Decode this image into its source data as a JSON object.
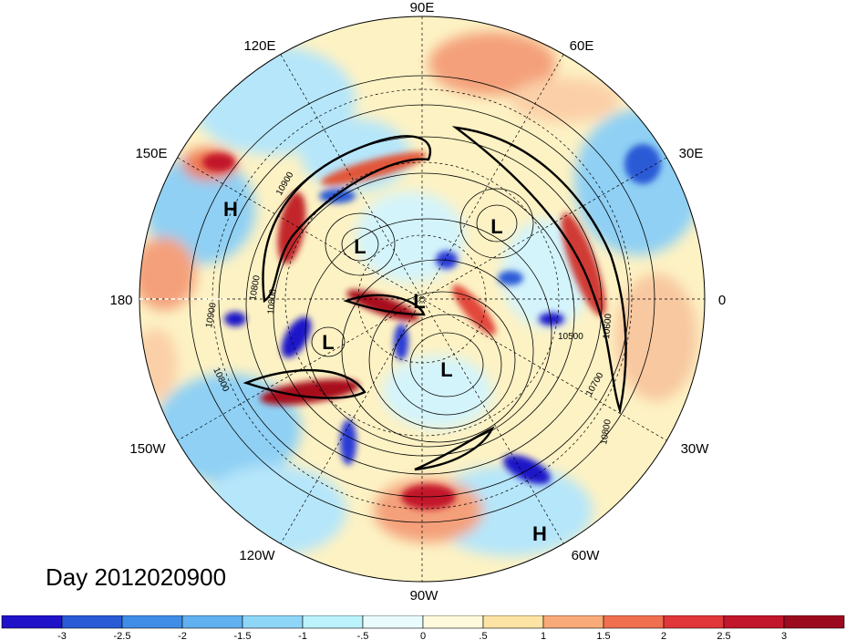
{
  "map": {
    "projection": "north polar stereographic",
    "longitude_labels": [
      "90E",
      "60E",
      "30E",
      "0",
      "30W",
      "60W",
      "90W",
      "120W",
      "150W",
      "180",
      "150E",
      "120E"
    ],
    "pressure_centers": [
      {
        "type": "H",
        "label": "H"
      },
      {
        "type": "L",
        "label": "L"
      },
      {
        "type": "L",
        "label": "L"
      },
      {
        "type": "L",
        "label": "L"
      },
      {
        "type": "L",
        "label": "L"
      },
      {
        "type": "L",
        "label": "L"
      },
      {
        "type": "H",
        "label": "H"
      }
    ],
    "contour_labels": [
      "10900",
      "10800",
      "10900",
      "10800",
      "10800",
      "10500",
      "10600",
      "10700",
      "10800"
    ],
    "colors": {
      "strong_negative": "#1a1acc",
      "negative": "#4f8fe8",
      "weak_negative": "#b6f0fa",
      "weak_positive": "#fdf2c4",
      "positive": "#f07a52",
      "strong_positive": "#a80c1e"
    }
  },
  "footer": {
    "day_label": "Day 2012020900"
  },
  "colorbar": {
    "tick_labels": [
      "-3",
      "-2.5",
      "-2",
      "-1.5",
      "-1",
      "-.5",
      "0",
      ".5",
      "1",
      "1.5",
      "2",
      "2.5",
      "3"
    ],
    "bin_colors": [
      "#1f12c8",
      "#2a5ad6",
      "#3f8de6",
      "#61b0f0",
      "#8ed6f8",
      "#bcf2fb",
      "#e9fbfc",
      "#fffadc",
      "#fde4a4",
      "#f8aa78",
      "#f06f4f",
      "#e1363a",
      "#c2162c",
      "#9c0a1e"
    ]
  }
}
